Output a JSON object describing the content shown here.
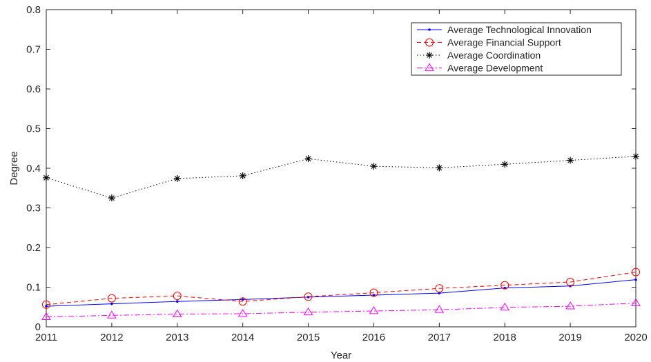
{
  "chart_data": {
    "type": "line",
    "xlabel": "Year",
    "ylabel": "Degree",
    "x": [
      2011,
      2012,
      2013,
      2014,
      2015,
      2016,
      2017,
      2018,
      2019,
      2020
    ],
    "xlim": [
      2011,
      2020
    ],
    "ylim": [
      0,
      0.8
    ],
    "xticks": [
      "2011",
      "2012",
      "2013",
      "2014",
      "2015",
      "2016",
      "2017",
      "2018",
      "2019",
      "2020"
    ],
    "yticks": [
      "0",
      "0.1",
      "0.2",
      "0.3",
      "0.4",
      "0.5",
      "0.6",
      "0.7",
      "0.8"
    ],
    "grid": false,
    "legend_position": "top-right",
    "series": [
      {
        "name": "Average Technological Innovation",
        "color": "#0000ff",
        "line_style": "solid",
        "marker": "dot",
        "values": [
          0.052,
          0.058,
          0.064,
          0.069,
          0.075,
          0.08,
          0.085,
          0.098,
          0.103,
          0.119
        ]
      },
      {
        "name": "Average Financial Support",
        "color": "#ff0000",
        "line_style": "dashed",
        "marker": "circle",
        "values": [
          0.056,
          0.072,
          0.078,
          0.064,
          0.076,
          0.086,
          0.097,
          0.105,
          0.113,
          0.138
        ]
      },
      {
        "name": "Average Coordination",
        "color": "#000000",
        "line_style": "dotted",
        "marker": "asterisk",
        "values": [
          0.376,
          0.325,
          0.374,
          0.381,
          0.424,
          0.405,
          0.401,
          0.41,
          0.42,
          0.43
        ]
      },
      {
        "name": "Average Development",
        "color": "#ff00ff",
        "line_style": "dashdot",
        "marker": "triangle",
        "values": [
          0.025,
          0.029,
          0.032,
          0.033,
          0.037,
          0.04,
          0.043,
          0.049,
          0.052,
          0.06
        ]
      }
    ]
  }
}
